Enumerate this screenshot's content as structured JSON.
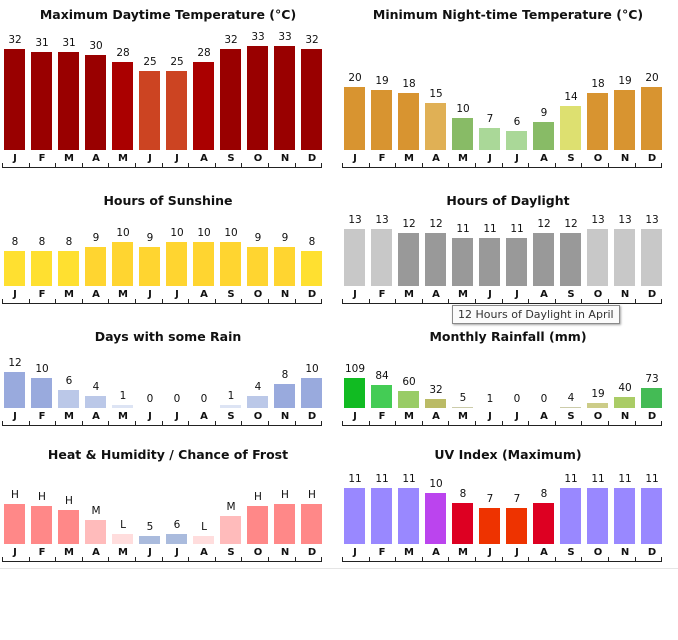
{
  "chart_data": [
    {
      "id": "max-temp",
      "type": "bar",
      "title": "Maximum Daytime Temperature (°C)",
      "categories": [
        "J",
        "F",
        "M",
        "A",
        "M",
        "J",
        "J",
        "A",
        "S",
        "O",
        "N",
        "D"
      ],
      "values": [
        32,
        31,
        31,
        30,
        28,
        25,
        25,
        28,
        32,
        33,
        33,
        32
      ],
      "labels": [
        "32",
        "31",
        "31",
        "30",
        "28",
        "25",
        "25",
        "28",
        "32",
        "33",
        "33",
        "32"
      ],
      "colors": [
        "#990000",
        "#990000",
        "#990000",
        "#990000",
        "#aa0000",
        "#cc4422",
        "#cc4422",
        "#aa0000",
        "#990000",
        "#990000",
        "#990000",
        "#990000"
      ],
      "ylim": [
        0,
        33
      ]
    },
    {
      "id": "min-temp",
      "type": "bar",
      "title": "Minimum Night-time Temperature (°C)",
      "categories": [
        "J",
        "F",
        "M",
        "A",
        "M",
        "J",
        "J",
        "A",
        "S",
        "O",
        "N",
        "D"
      ],
      "values": [
        20,
        19,
        18,
        15,
        10,
        7,
        6,
        9,
        14,
        18,
        19,
        20
      ],
      "labels": [
        "20",
        "19",
        "18",
        "15",
        "10",
        "7",
        "6",
        "9",
        "14",
        "18",
        "19",
        "20"
      ],
      "colors": [
        "#d89430",
        "#d89430",
        "#d89430",
        "#e0b055",
        "#88bb66",
        "#aad898",
        "#aad898",
        "#88bb66",
        "#dde070",
        "#d89430",
        "#d89430",
        "#d89430"
      ],
      "ylim": [
        0,
        33
      ]
    },
    {
      "id": "sunshine",
      "type": "bar",
      "title": "Hours of Sunshine",
      "categories": [
        "J",
        "F",
        "M",
        "A",
        "M",
        "J",
        "J",
        "A",
        "S",
        "O",
        "N",
        "D"
      ],
      "values": [
        8,
        8,
        8,
        9,
        10,
        9,
        10,
        10,
        10,
        9,
        9,
        8
      ],
      "labels": [
        "8",
        "8",
        "8",
        "9",
        "10",
        "9",
        "10",
        "10",
        "10",
        "9",
        "9",
        "8"
      ],
      "colors": [
        "#ffe030",
        "#ffe030",
        "#ffe030",
        "#ffd530",
        "#ffd530",
        "#ffd530",
        "#ffd530",
        "#ffd530",
        "#ffd530",
        "#ffd530",
        "#ffd530",
        "#ffe030"
      ],
      "ylim": [
        0,
        24
      ]
    },
    {
      "id": "daylight",
      "type": "bar",
      "title": "Hours of Daylight",
      "categories": [
        "J",
        "F",
        "M",
        "A",
        "M",
        "J",
        "J",
        "A",
        "S",
        "O",
        "N",
        "D"
      ],
      "values": [
        13,
        13,
        12,
        12,
        11,
        11,
        11,
        12,
        12,
        13,
        13,
        13
      ],
      "labels": [
        "13",
        "13",
        "12",
        "12",
        "11",
        "11",
        "11",
        "12",
        "12",
        "13",
        "13",
        "13"
      ],
      "colors": [
        "#c8c8c8",
        "#c8c8c8",
        "#999999",
        "#999999",
        "#999999",
        "#999999",
        "#999999",
        "#999999",
        "#999999",
        "#c8c8c8",
        "#c8c8c8",
        "#c8c8c8"
      ],
      "ylim": [
        0,
        24
      ],
      "tooltip": "12 Hours of Daylight in April"
    },
    {
      "id": "rain-days",
      "type": "bar",
      "title": "Days with some Rain",
      "categories": [
        "J",
        "F",
        "M",
        "A",
        "M",
        "J",
        "J",
        "A",
        "S",
        "O",
        "N",
        "D"
      ],
      "values": [
        12,
        10,
        6,
        4,
        1,
        0,
        0,
        0,
        1,
        4,
        8,
        10
      ],
      "labels": [
        "12",
        "10",
        "6",
        "4",
        "1",
        "0",
        "0",
        "0",
        "1",
        "4",
        "8",
        "10"
      ],
      "colors": [
        "#99aadd",
        "#99aadd",
        "#bbc8e8",
        "#bbc8e8",
        "#dde4f4",
        "#dde4f4",
        "#dde4f4",
        "#dde4f4",
        "#dde4f4",
        "#bbc8e8",
        "#99aadd",
        "#99aadd"
      ],
      "ylim": [
        0,
        12
      ]
    },
    {
      "id": "rainfall",
      "type": "bar",
      "title": "Monthly Rainfall (mm)",
      "categories": [
        "J",
        "F",
        "M",
        "A",
        "M",
        "J",
        "J",
        "A",
        "S",
        "O",
        "N",
        "D"
      ],
      "values": [
        109,
        84,
        60,
        32,
        5,
        1,
        0,
        0,
        4,
        19,
        40,
        73
      ],
      "labels": [
        "109",
        "84",
        "60",
        "32",
        "5",
        "1",
        "0",
        "0",
        "4",
        "19",
        "40",
        "73"
      ],
      "colors": [
        "#11bb22",
        "#44cc55",
        "#99cc66",
        "#bbbb66",
        "#ccccaa",
        "#ccccaa",
        "#ccccaa",
        "#ccccaa",
        "#ccccaa",
        "#cccc88",
        "#aacc66",
        "#44bb55"
      ],
      "ylim": [
        0,
        109
      ]
    },
    {
      "id": "humidity",
      "type": "bar",
      "title": "Heat & Humidity / Chance of Frost",
      "categories": [
        "J",
        "F",
        "M",
        "A",
        "M",
        "J",
        "J",
        "A",
        "S",
        "O",
        "N",
        "D"
      ],
      "values": [
        10,
        9.5,
        8.5,
        6,
        2.5,
        2,
        2.5,
        2,
        7,
        9.5,
        10,
        10
      ],
      "labels": [
        "H",
        "H",
        "H",
        "M",
        "L",
        "5",
        "6",
        "L",
        "M",
        "H",
        "H",
        "H"
      ],
      "colors": [
        "#ff8888",
        "#ff8888",
        "#ff8888",
        "#ffbbbb",
        "#ffdddd",
        "#aabbdd",
        "#aabbdd",
        "#ffdddd",
        "#ffbbbb",
        "#ff8888",
        "#ff8888",
        "#ff8888"
      ],
      "ylim": [
        0,
        10
      ]
    },
    {
      "id": "uv",
      "type": "bar",
      "title": "UV Index (Maximum)",
      "categories": [
        "J",
        "F",
        "M",
        "A",
        "M",
        "J",
        "J",
        "A",
        "S",
        "O",
        "N",
        "D"
      ],
      "values": [
        11,
        11,
        11,
        10,
        8,
        7,
        7,
        8,
        11,
        11,
        11,
        11
      ],
      "labels": [
        "11",
        "11",
        "11",
        "10",
        "8",
        "7",
        "7",
        "8",
        "11",
        "11",
        "11",
        "11"
      ],
      "colors": [
        "#9988ff",
        "#9988ff",
        "#9988ff",
        "#bb44ee",
        "#dd0022",
        "#ee3300",
        "#ee3300",
        "#dd0022",
        "#9988ff",
        "#9988ff",
        "#9988ff",
        "#9988ff"
      ],
      "ylim": [
        0,
        11
      ]
    }
  ]
}
